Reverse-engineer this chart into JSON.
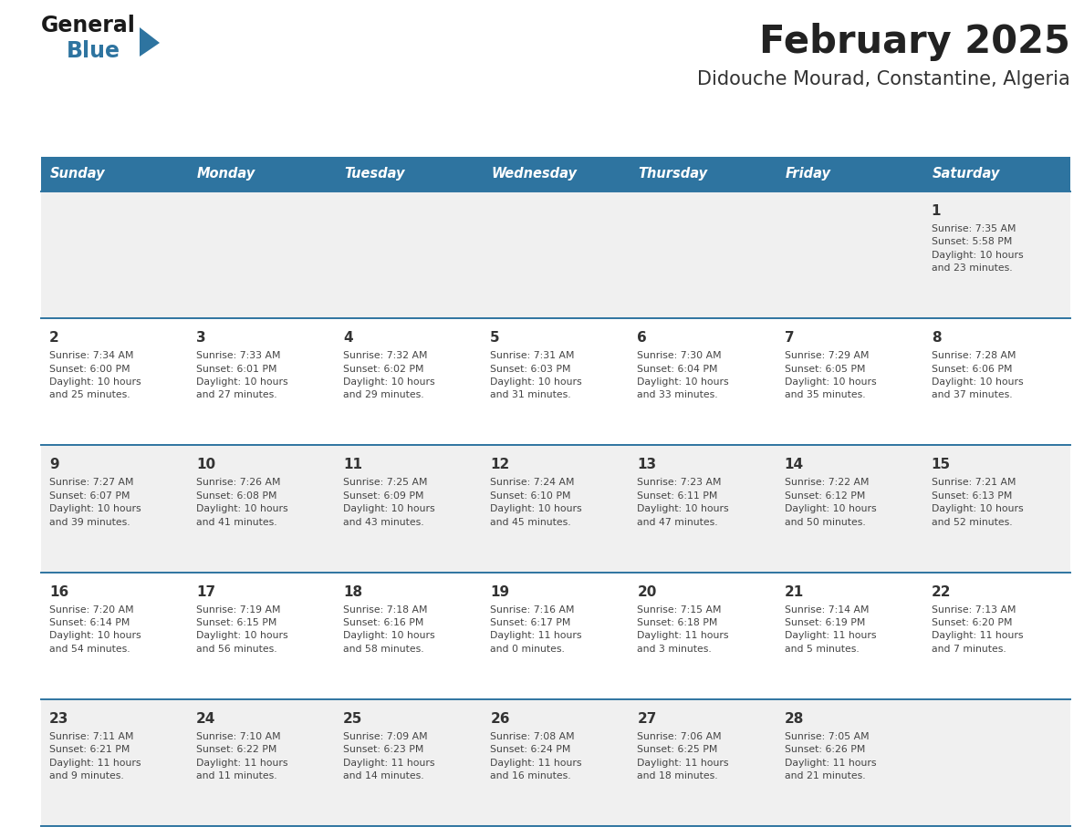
{
  "title": "February 2025",
  "subtitle": "Didouche Mourad, Constantine, Algeria",
  "days_of_week": [
    "Sunday",
    "Monday",
    "Tuesday",
    "Wednesday",
    "Thursday",
    "Friday",
    "Saturday"
  ],
  "header_bg": "#2E74A0",
  "header_text": "#FFFFFF",
  "row_bg_odd": "#F0F0F0",
  "row_bg_even": "#FFFFFF",
  "separator_color": "#2E74A0",
  "day_num_color": "#333333",
  "cell_text_color": "#444444",
  "title_color": "#222222",
  "subtitle_color": "#333333",
  "logo_general_color": "#1a1a1a",
  "logo_blue_color": "#2E74A0",
  "calendar": [
    [
      {
        "day": "",
        "info": ""
      },
      {
        "day": "",
        "info": ""
      },
      {
        "day": "",
        "info": ""
      },
      {
        "day": "",
        "info": ""
      },
      {
        "day": "",
        "info": ""
      },
      {
        "day": "",
        "info": ""
      },
      {
        "day": "1",
        "info": "Sunrise: 7:35 AM\nSunset: 5:58 PM\nDaylight: 10 hours\nand 23 minutes."
      }
    ],
    [
      {
        "day": "2",
        "info": "Sunrise: 7:34 AM\nSunset: 6:00 PM\nDaylight: 10 hours\nand 25 minutes."
      },
      {
        "day": "3",
        "info": "Sunrise: 7:33 AM\nSunset: 6:01 PM\nDaylight: 10 hours\nand 27 minutes."
      },
      {
        "day": "4",
        "info": "Sunrise: 7:32 AM\nSunset: 6:02 PM\nDaylight: 10 hours\nand 29 minutes."
      },
      {
        "day": "5",
        "info": "Sunrise: 7:31 AM\nSunset: 6:03 PM\nDaylight: 10 hours\nand 31 minutes."
      },
      {
        "day": "6",
        "info": "Sunrise: 7:30 AM\nSunset: 6:04 PM\nDaylight: 10 hours\nand 33 minutes."
      },
      {
        "day": "7",
        "info": "Sunrise: 7:29 AM\nSunset: 6:05 PM\nDaylight: 10 hours\nand 35 minutes."
      },
      {
        "day": "8",
        "info": "Sunrise: 7:28 AM\nSunset: 6:06 PM\nDaylight: 10 hours\nand 37 minutes."
      }
    ],
    [
      {
        "day": "9",
        "info": "Sunrise: 7:27 AM\nSunset: 6:07 PM\nDaylight: 10 hours\nand 39 minutes."
      },
      {
        "day": "10",
        "info": "Sunrise: 7:26 AM\nSunset: 6:08 PM\nDaylight: 10 hours\nand 41 minutes."
      },
      {
        "day": "11",
        "info": "Sunrise: 7:25 AM\nSunset: 6:09 PM\nDaylight: 10 hours\nand 43 minutes."
      },
      {
        "day": "12",
        "info": "Sunrise: 7:24 AM\nSunset: 6:10 PM\nDaylight: 10 hours\nand 45 minutes."
      },
      {
        "day": "13",
        "info": "Sunrise: 7:23 AM\nSunset: 6:11 PM\nDaylight: 10 hours\nand 47 minutes."
      },
      {
        "day": "14",
        "info": "Sunrise: 7:22 AM\nSunset: 6:12 PM\nDaylight: 10 hours\nand 50 minutes."
      },
      {
        "day": "15",
        "info": "Sunrise: 7:21 AM\nSunset: 6:13 PM\nDaylight: 10 hours\nand 52 minutes."
      }
    ],
    [
      {
        "day": "16",
        "info": "Sunrise: 7:20 AM\nSunset: 6:14 PM\nDaylight: 10 hours\nand 54 minutes."
      },
      {
        "day": "17",
        "info": "Sunrise: 7:19 AM\nSunset: 6:15 PM\nDaylight: 10 hours\nand 56 minutes."
      },
      {
        "day": "18",
        "info": "Sunrise: 7:18 AM\nSunset: 6:16 PM\nDaylight: 10 hours\nand 58 minutes."
      },
      {
        "day": "19",
        "info": "Sunrise: 7:16 AM\nSunset: 6:17 PM\nDaylight: 11 hours\nand 0 minutes."
      },
      {
        "day": "20",
        "info": "Sunrise: 7:15 AM\nSunset: 6:18 PM\nDaylight: 11 hours\nand 3 minutes."
      },
      {
        "day": "21",
        "info": "Sunrise: 7:14 AM\nSunset: 6:19 PM\nDaylight: 11 hours\nand 5 minutes."
      },
      {
        "day": "22",
        "info": "Sunrise: 7:13 AM\nSunset: 6:20 PM\nDaylight: 11 hours\nand 7 minutes."
      }
    ],
    [
      {
        "day": "23",
        "info": "Sunrise: 7:11 AM\nSunset: 6:21 PM\nDaylight: 11 hours\nand 9 minutes."
      },
      {
        "day": "24",
        "info": "Sunrise: 7:10 AM\nSunset: 6:22 PM\nDaylight: 11 hours\nand 11 minutes."
      },
      {
        "day": "25",
        "info": "Sunrise: 7:09 AM\nSunset: 6:23 PM\nDaylight: 11 hours\nand 14 minutes."
      },
      {
        "day": "26",
        "info": "Sunrise: 7:08 AM\nSunset: 6:24 PM\nDaylight: 11 hours\nand 16 minutes."
      },
      {
        "day": "27",
        "info": "Sunrise: 7:06 AM\nSunset: 6:25 PM\nDaylight: 11 hours\nand 18 minutes."
      },
      {
        "day": "28",
        "info": "Sunrise: 7:05 AM\nSunset: 6:26 PM\nDaylight: 11 hours\nand 21 minutes."
      },
      {
        "day": "",
        "info": ""
      }
    ]
  ],
  "fig_width": 11.88,
  "fig_height": 9.18,
  "dpi": 100
}
